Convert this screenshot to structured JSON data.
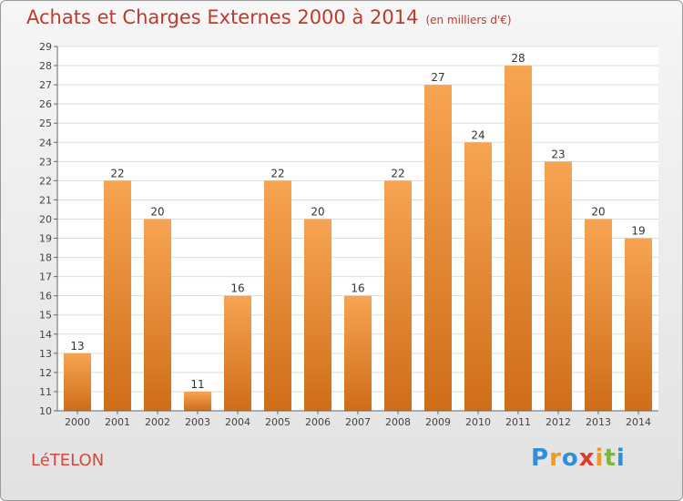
{
  "header": {
    "title": "Achats et Charges Externes 2000 à 2014",
    "subtitle": "(en milliers d'€)"
  },
  "footer": {
    "commune": "LéTELON",
    "logo": {
      "text": "Proxiti",
      "letter_colors": [
        "#2f8fd8",
        "#f29a1e",
        "#2f8fd8",
        "#d93d2b",
        "#f29a1e",
        "#7ab83a",
        "#2f8fd8"
      ]
    }
  },
  "colors": {
    "title": "#c0392b",
    "bar_top": "#f7a452",
    "bar_bottom": "#cf6d19",
    "grid": "#dddddd",
    "axis": "#666666"
  },
  "chart_data": {
    "type": "bar",
    "categories": [
      "2000",
      "2001",
      "2002",
      "2003",
      "2004",
      "2005",
      "2006",
      "2007",
      "2008",
      "2009",
      "2010",
      "2011",
      "2012",
      "2013",
      "2014"
    ],
    "values": [
      13,
      22,
      20,
      11,
      16,
      22,
      20,
      16,
      22,
      27,
      24,
      28,
      23,
      20,
      19
    ],
    "ylim": [
      10,
      29
    ],
    "yticks": [
      10,
      11,
      12,
      13,
      14,
      15,
      16,
      17,
      18,
      19,
      20,
      21,
      22,
      23,
      24,
      25,
      26,
      27,
      28,
      29
    ],
    "grid": true,
    "xlabel": "",
    "ylabel": ""
  }
}
